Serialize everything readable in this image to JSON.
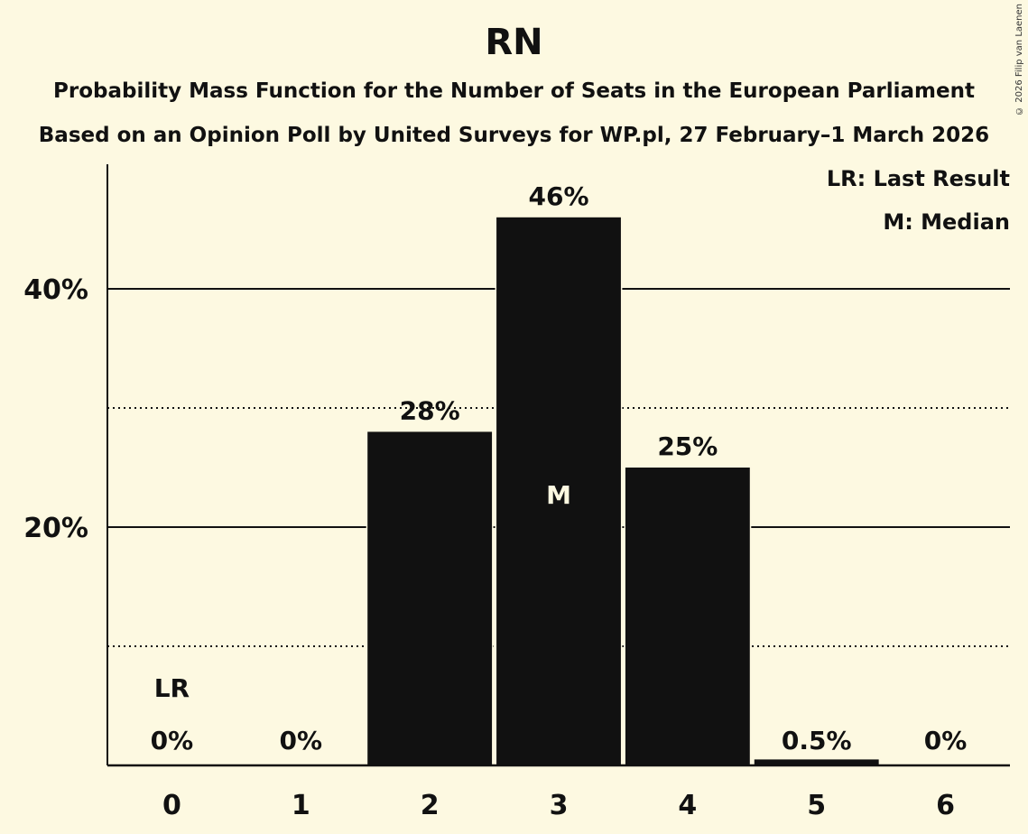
{
  "header": {
    "title": "RN",
    "subtitle": "Probability Mass Function for the Number of Seats in the European Parliament",
    "subtitle2": "Based on an Opinion Poll by United Surveys for WP.pl, 27 February–1 March 2026",
    "copyright": "© 2026 Filip van Laenen"
  },
  "legend": {
    "lr": "LR: Last Result",
    "m": "M: Median"
  },
  "colors": {
    "background": "#fdf9e1",
    "bar": "#111111"
  },
  "chart_data": {
    "type": "bar",
    "title": "RN",
    "subtitle": "Probability Mass Function for the Number of Seats in the European Parliament",
    "categories": [
      "0",
      "1",
      "2",
      "3",
      "4",
      "5",
      "6"
    ],
    "values": [
      0,
      0,
      28,
      46,
      25,
      0.5,
      0
    ],
    "value_labels": [
      "0%",
      "0%",
      "28%",
      "46%",
      "25%",
      "0.5%",
      "0%"
    ],
    "xlabel": "",
    "ylabel": "",
    "yticks": [
      "20%",
      "40%"
    ],
    "ylim": [
      0,
      50
    ],
    "grid": {
      "solid": [
        20,
        40
      ],
      "dotted": [
        10,
        30
      ]
    },
    "annotations": [
      {
        "category": "0",
        "text": "LR",
        "meaning": "Last Result"
      },
      {
        "category": "3",
        "text": "M",
        "meaning": "Median"
      }
    ],
    "legend": [
      "LR: Last Result",
      "M: Median"
    ],
    "legend_position": "top-right"
  }
}
